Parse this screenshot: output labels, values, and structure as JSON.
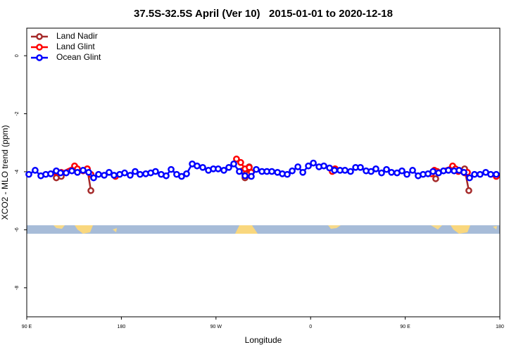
{
  "chart_data": {
    "type": "line",
    "title": "37.5S-32.5S April (Ver 10)   2015-01-01 to 2020-12-18",
    "xlabel": "Longitude",
    "ylabel": "XCO2 - MLO trend (ppm)",
    "xlim": [
      90,
      540
    ],
    "xticks": [
      {
        "value": 90,
        "label": "90 E"
      },
      {
        "value": 180,
        "label": "180"
      },
      {
        "value": 270,
        "label": "90 W"
      },
      {
        "value": 360,
        "label": "0"
      },
      {
        "value": 450,
        "label": "90 E"
      },
      {
        "value": 540,
        "label": "180"
      }
    ],
    "ylim": [
      -9,
      0.95
    ],
    "yticks": [
      0,
      -2,
      -4,
      -6,
      -8
    ],
    "legend": "top-left",
    "series": [
      {
        "name": "Land Nadir",
        "color": "#a52a2a",
        "x": [
          118.1,
          122.8,
          null,
          147.6,
          151,
          null,
          294.9,
          297.6,
          301.6,
          null,
          383.3,
          null,
          479,
          null,
          506.5,
          510.5
        ],
        "values": [
          -4.21,
          -4.16,
          null,
          -3.9,
          -4.65,
          null,
          -3.97,
          -4.21,
          -3.83,
          null,
          -3.9,
          null,
          -4.24,
          null,
          -3.9,
          -4.65
        ]
      },
      {
        "name": "Land Glint",
        "color": "#ff0000",
        "x": [
          117.5,
          122.8,
          135.5,
          138.2,
          143.6,
          147.6,
          151,
          null,
          174.4,
          null,
          289.5,
          293.5,
          297.6,
          301.6,
          303.6,
          null,
          380.6,
          383.3,
          null,
          475,
          477.7,
          480.4,
          495.1,
          497.8,
          500.5,
          506.5,
          509.2,
          null,
          536.6
        ],
        "values": [
          -4.02,
          -4.02,
          -3.8,
          -3.9,
          -3.97,
          -3.9,
          -4.09,
          null,
          -4.16,
          null,
          -3.56,
          -3.68,
          -3.9,
          -3.85,
          -4.02,
          null,
          -3.99,
          -3.9,
          null,
          -4.07,
          -3.95,
          -3.99,
          -3.8,
          -3.9,
          -3.99,
          -4.04,
          -4.02,
          null,
          -4.16
        ]
      },
      {
        "name": "Ocean Glint",
        "color": "#0000ff",
        "x": [
          92,
          98,
          103.4,
          108.1,
          112.8,
          118.1,
          122.1,
          127.5,
          132.9,
          138.2,
          143.6,
          148.9,
          153.6,
          158.3,
          163.7,
          168.3,
          173,
          178.4,
          183.1,
          188.4,
          193.1,
          197.8,
          203.2,
          207.9,
          212.5,
          217.9,
          222.6,
          227.3,
          232.6,
          237.3,
          242,
          247.4,
          252,
          257.4,
          262.8,
          267.5,
          272.1,
          277.5,
          282.2,
          286.9,
          292.2,
          297.6,
          303.6,
          308.3,
          313.7,
          318.4,
          323.1,
          328.5,
          333.1,
          337.8,
          342.5,
          347.9,
          352.6,
          357.9,
          362.6,
          368,
          372.6,
          378,
          382.7,
          388,
          392.7,
          398,
          402.8,
          407.4,
          412.8,
          417.5,
          422.1,
          427.5,
          432.2,
          436.9,
          442.2,
          446.9,
          451.6,
          457,
          462.3,
          467,
          471.7,
          476.4,
          481.7,
          486.4,
          491.1,
          496.5,
          501.2,
          505.8,
          511.2,
          515.9,
          521.2,
          526.6,
          531.3,
          536.6
        ],
        "values": [
          -4.09,
          -3.95,
          -4.14,
          -4.09,
          -4.07,
          -3.97,
          -4.04,
          -4.04,
          -3.97,
          -4.02,
          -3.95,
          -4.02,
          -4.21,
          -4.09,
          -4.12,
          -4.02,
          -4.12,
          -4.09,
          -4.04,
          -4.12,
          -3.99,
          -4.09,
          -4.07,
          -4.04,
          -3.99,
          -4.09,
          -4.14,
          -3.92,
          -4.09,
          -4.16,
          -4.07,
          -3.73,
          -3.8,
          -3.85,
          -3.95,
          -3.9,
          -3.9,
          -3.95,
          -3.85,
          -3.73,
          -3.99,
          -4.14,
          -4.16,
          -3.92,
          -3.99,
          -3.99,
          -3.99,
          -4.02,
          -4.07,
          -4.09,
          -3.97,
          -3.83,
          -4.02,
          -3.8,
          -3.7,
          -3.83,
          -3.8,
          -3.87,
          -3.95,
          -3.95,
          -3.95,
          -3.99,
          -3.85,
          -3.85,
          -3.97,
          -3.99,
          -3.9,
          -4.04,
          -3.92,
          -4.02,
          -4.04,
          -3.97,
          -4.09,
          -3.95,
          -4.14,
          -4.09,
          -4.07,
          -3.99,
          -4.04,
          -3.97,
          -3.95,
          -3.97,
          -3.95,
          -4.02,
          -4.21,
          -4.09,
          -4.09,
          -4.02,
          -4.09,
          -4.09
        ]
      }
    ]
  }
}
